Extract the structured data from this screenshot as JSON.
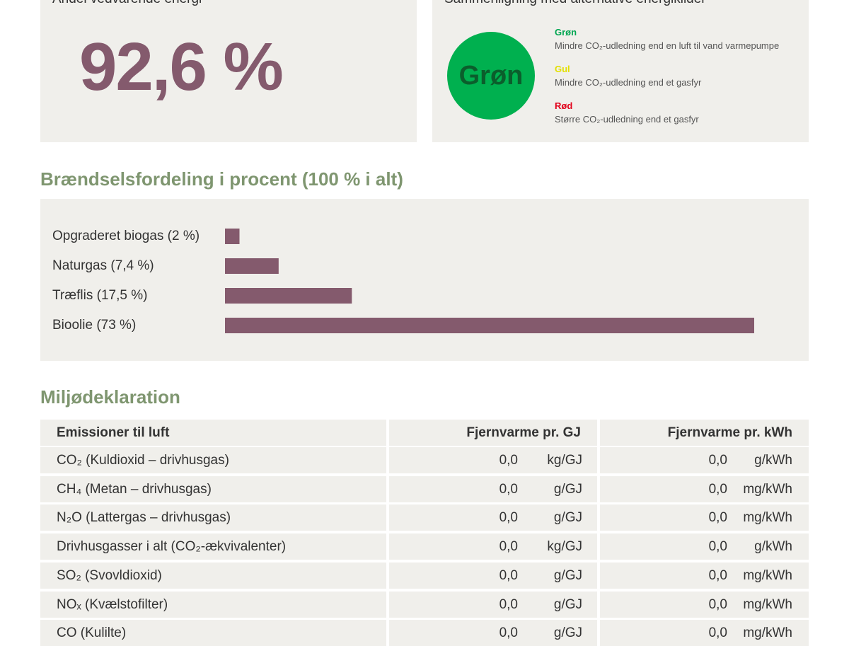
{
  "renewable": {
    "title": "Andel vedvarende energi",
    "value": "92,6 %"
  },
  "comparison": {
    "title": "Sammenligning med alternative energikilder",
    "badge": "Grøn",
    "items": [
      {
        "label": "Grøn",
        "text": "Mindre CO₂-udledning end en luft til vand varmepumpe",
        "color": "#00a651"
      },
      {
        "label": "Gul",
        "text": "Mindre CO₂-udledning end et gasfyr",
        "color": "#e3e000"
      },
      {
        "label": "Rød",
        "text": "Større CO₂-udledning end et gasfyr",
        "color": "#e2001a"
      }
    ]
  },
  "chart_data": {
    "type": "bar",
    "orientation": "horizontal",
    "title": "Brændselsfordeling i procent (100 % i alt)",
    "categories": [
      "Opgraderet biogas (2 %)",
      "Naturgas (7,4 %)",
      "Træflis (17,5 %)",
      "Bioolie (73 %)"
    ],
    "values": [
      2,
      7.4,
      17.5,
      73
    ],
    "color": "#845a6d"
  },
  "table": {
    "title": "Miljødeklaration",
    "header": [
      "Emissioner til luft",
      "Fjernvarme pr. GJ",
      "Fjernvarme pr. kWh"
    ],
    "rows": [
      [
        "CO₂ (Kuldioxid – drivhusgas)",
        "0,0",
        "kg/GJ",
        "0,0",
        "g/kWh"
      ],
      [
        "CH₄ (Metan – drivhusgas)",
        "0,0",
        "g/GJ",
        "0,0",
        "mg/kWh"
      ],
      [
        "N₂O (Lattergas – drivhusgas)",
        "0,0",
        "g/GJ",
        "0,0",
        "mg/kWh"
      ],
      [
        "Drivhusgasser i alt (CO₂-ækvivalenter)",
        "0,0",
        "kg/GJ",
        "0,0",
        "g/kWh"
      ],
      [
        "SO₂ (Svovldioxid)",
        "0,0",
        "g/GJ",
        "0,0",
        "mg/kWh"
      ],
      [
        "NOₓ (Kvælstofilter)",
        "0,0",
        "g/GJ",
        "0,0",
        "mg/kWh"
      ],
      [
        "CO (Kulilte)",
        "0,0",
        "g/GJ",
        "0,0",
        "mg/kWh"
      ]
    ]
  }
}
